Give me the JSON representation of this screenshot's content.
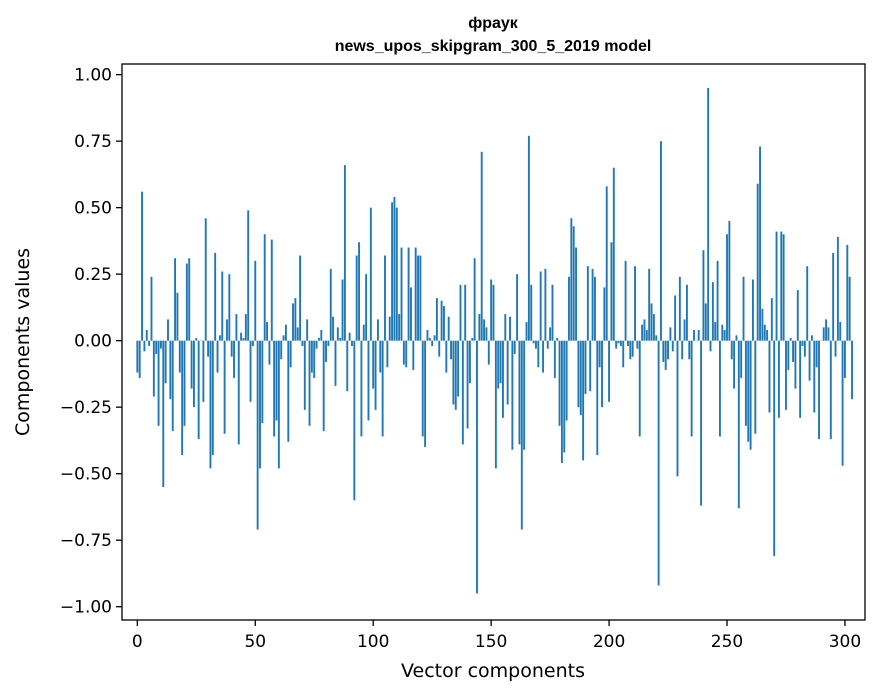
{
  "chart_data": {
    "type": "bar",
    "title_line1": "фраук",
    "title_line2": "news_upos_skipgram_300_5_2019 model",
    "xlabel": "Vector components",
    "ylabel": "Components values",
    "xlim": [
      -6.5,
      308.5
    ],
    "ylim": [
      -1.05,
      1.04
    ],
    "xticks": [
      0,
      50,
      100,
      150,
      200,
      250,
      300
    ],
    "xtick_labels": [
      "0",
      "50",
      "100",
      "150",
      "200",
      "250",
      "300"
    ],
    "yticks": [
      -1.0,
      -0.75,
      -0.5,
      -0.25,
      0.0,
      0.25,
      0.5,
      0.75,
      1.0
    ],
    "ytick_labels": [
      "−1.00",
      "−0.75",
      "−0.50",
      "−0.25",
      "0.00",
      "0.25",
      "0.50",
      "0.75",
      "1.00"
    ],
    "bar_color": "#1f77b4",
    "values": [
      -0.12,
      -0.14,
      0.56,
      -0.04,
      0.04,
      -0.02,
      0.24,
      -0.21,
      -0.05,
      -0.32,
      -0.03,
      -0.55,
      -0.16,
      0.08,
      -0.22,
      -0.34,
      0.31,
      0.18,
      -0.12,
      -0.43,
      -0.32,
      0.29,
      0.31,
      -0.18,
      -0.25,
      0.01,
      -0.37,
      0.0,
      -0.23,
      0.46,
      -0.06,
      -0.48,
      -0.43,
      0.33,
      -0.12,
      0.02,
      0.26,
      -0.35,
      0.08,
      0.25,
      -0.06,
      -0.14,
      0.1,
      -0.39,
      0.03,
      0.01,
      0.1,
      0.49,
      -0.23,
      -0.02,
      0.3,
      -0.71,
      -0.48,
      -0.31,
      0.4,
      0.07,
      -0.09,
      0.38,
      -0.36,
      -0.3,
      -0.48,
      -0.07,
      0.02,
      0.06,
      -0.38,
      -0.1,
      0.14,
      0.16,
      0.05,
      0.32,
      -0.02,
      -0.26,
      0.08,
      -0.32,
      -0.12,
      -0.14,
      -0.03,
      0.01,
      0.04,
      -0.34,
      -0.08,
      -0.02,
      0.27,
      0.09,
      -0.17,
      0.05,
      0.01,
      0.23,
      0.66,
      -0.19,
      0.03,
      -0.02,
      -0.6,
      0.32,
      0.37,
      -0.36,
      0.06,
      0.25,
      -0.3,
      0.5,
      -0.18,
      -0.26,
      0.08,
      -0.12,
      -0.36,
      0.32,
      -0.1,
      0.09,
      0.52,
      0.54,
      0.5,
      0.1,
      0.35,
      -0.09,
      -0.1,
      0.35,
      0.2,
      -0.11,
      0.35,
      0.32,
      0.32,
      -0.36,
      -0.4,
      0.04,
      0.01,
      -0.02,
      0.02,
      0.16,
      -0.06,
      0.15,
      0.13,
      -0.12,
      0.09,
      -0.07,
      -0.24,
      -0.26,
      -0.21,
      0.21,
      -0.39,
      0.21,
      -0.33,
      -0.16,
      0.01,
      0.31,
      -0.95,
      0.1,
      0.71,
      0.08,
      0.05,
      -0.09,
      0.23,
      0.21,
      -0.48,
      -0.18,
      -0.16,
      -0.29,
      0.1,
      -0.24,
      0.09,
      -0.41,
      -0.05,
      0.25,
      -0.39,
      -0.71,
      -0.41,
      0.07,
      0.77,
      0.21,
      -0.01,
      -0.03,
      -0.1,
      0.26,
      -0.12,
      0.27,
      -0.03,
      0.05,
      0.21,
      -0.14,
      0.01,
      -0.32,
      -0.46,
      -0.42,
      -0.3,
      0.24,
      0.46,
      0.43,
      0.35,
      -0.25,
      -0.28,
      -0.45,
      -0.2,
      0.28,
      -0.19,
      0.27,
      0.24,
      -0.43,
      -0.1,
      -0.25,
      0.2,
      0.58,
      -0.23,
      0.37,
      0.65,
      -0.03,
      -0.01,
      -0.02,
      -0.1,
      0.3,
      -0.02,
      -0.07,
      -0.06,
      0.28,
      -0.03,
      -0.36,
      0.06,
      0.08,
      0.04,
      0.27,
      0.14,
      0.1,
      0.02,
      -0.92,
      0.75,
      -0.08,
      -0.11,
      -0.07,
      0.05,
      -0.04,
      0.17,
      -0.51,
      0.24,
      -0.07,
      0.08,
      0.21,
      -0.07,
      -0.36,
      0.04,
      0.0,
      0.04,
      -0.62,
      0.34,
      0.14,
      0.95,
      -0.04,
      0.22,
      0.07,
      0.3,
      -0.36,
      0.06,
      0.04,
      0.4,
      0.45,
      -0.07,
      -0.18,
      0.02,
      -0.63,
      -0.14,
      0.24,
      -0.32,
      -0.38,
      -0.41,
      0.23,
      -0.35,
      0.59,
      0.73,
      0.12,
      0.06,
      0.04,
      -0.27,
      0.16,
      -0.81,
      0.41,
      -0.29,
      0.41,
      0.4,
      -0.26,
      -0.11,
      0.01,
      -0.08,
      -0.18,
      0.19,
      -0.29,
      -0.02,
      -0.06,
      0.28,
      -0.15,
      0.02,
      -0.27,
      -0.1,
      -0.37,
      0.0,
      0.05,
      0.08,
      0.05,
      -0.37,
      0.33,
      -0.06,
      0.39,
      0.07,
      -0.47,
      -0.14,
      0.36,
      0.24,
      -0.22
    ]
  }
}
